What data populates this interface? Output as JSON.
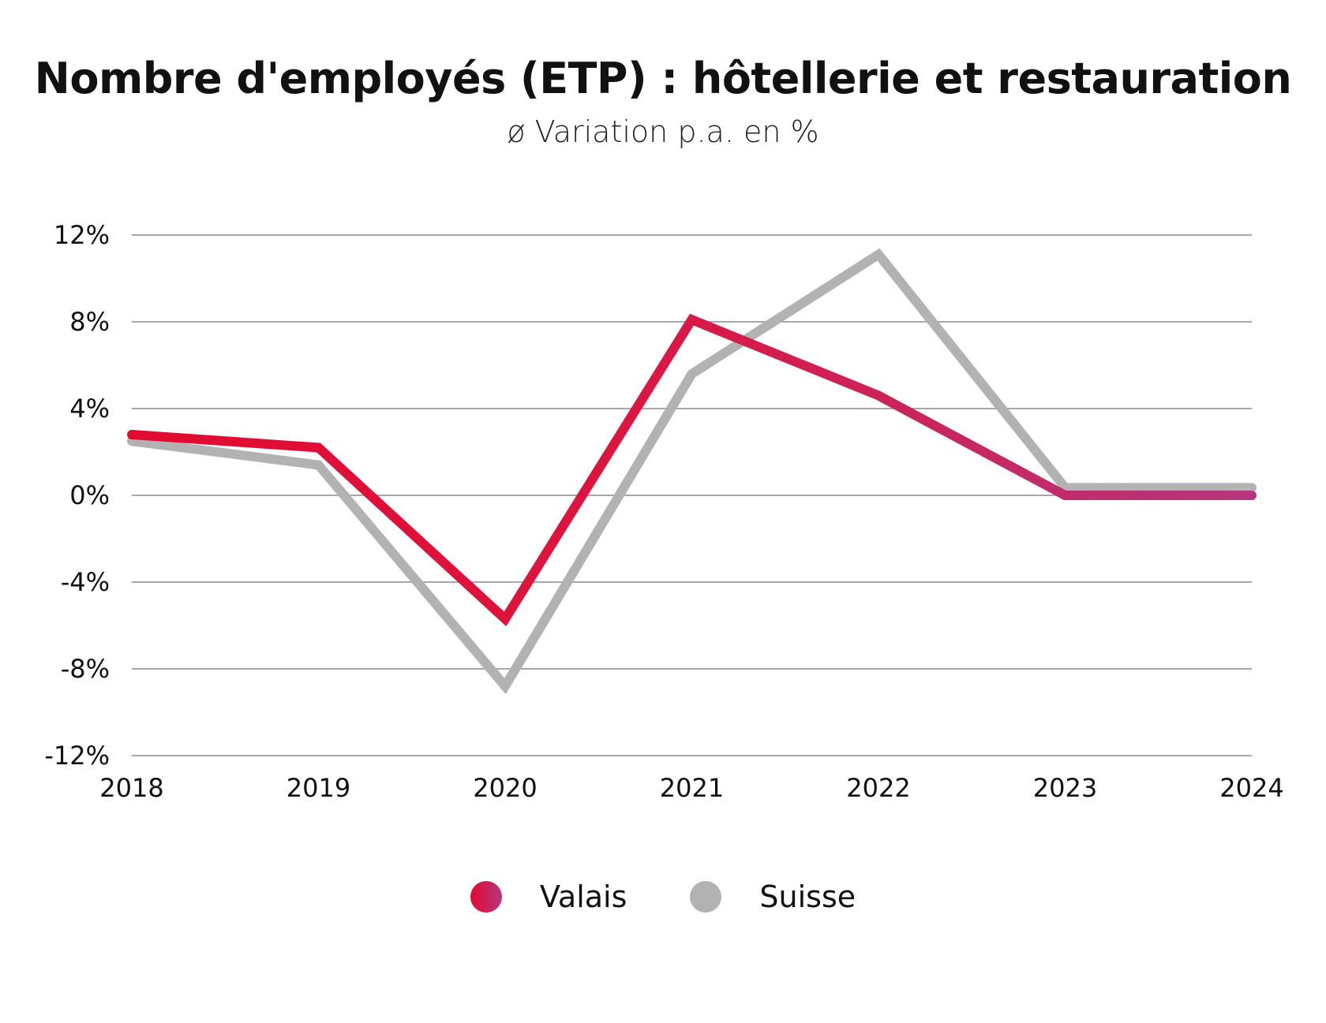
{
  "chart_data": {
    "type": "line",
    "title": "Nombre d'employés (ETP) : hôtellerie et restauration",
    "subtitle": "ø Variation p.a. en %",
    "xlabel": "",
    "ylabel": "",
    "x": [
      "2018",
      "2019",
      "2020",
      "2021",
      "2022",
      "2023",
      "2024"
    ],
    "ylim": [
      -12,
      12
    ],
    "yticks": [
      12,
      8,
      4,
      0,
      -4,
      -8,
      -12
    ],
    "ytick_labels": [
      "12%",
      "8%",
      "4%",
      "0%",
      "-4%",
      "-8%",
      "-12%"
    ],
    "grid": true,
    "legend_position": "bottom-center",
    "series": [
      {
        "name": "Suisse",
        "color": "#b2b2b2",
        "values": [
          2.5,
          1.4,
          -8.8,
          5.6,
          11.1,
          0.35,
          0.35
        ]
      },
      {
        "name": "Valais",
        "color": "#e20a2f",
        "color_end": "#b5367e",
        "values": [
          2.8,
          2.2,
          -5.7,
          8.1,
          4.6,
          0.0,
          0.0
        ]
      }
    ]
  }
}
